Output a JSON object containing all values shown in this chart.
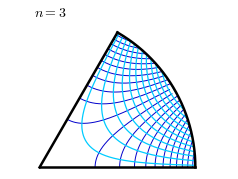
{
  "n": 3,
  "title": "$n = 3$",
  "phi_color": "#0000cc",
  "psi_color": "#00ccff",
  "boundary_color": "#000000",
  "background_color": "#ffffff",
  "num_phi_lines": 22,
  "num_psi_lines": 12,
  "linewidth_phi": 0.7,
  "linewidth_psi": 0.9,
  "boundary_linewidth": 1.8
}
